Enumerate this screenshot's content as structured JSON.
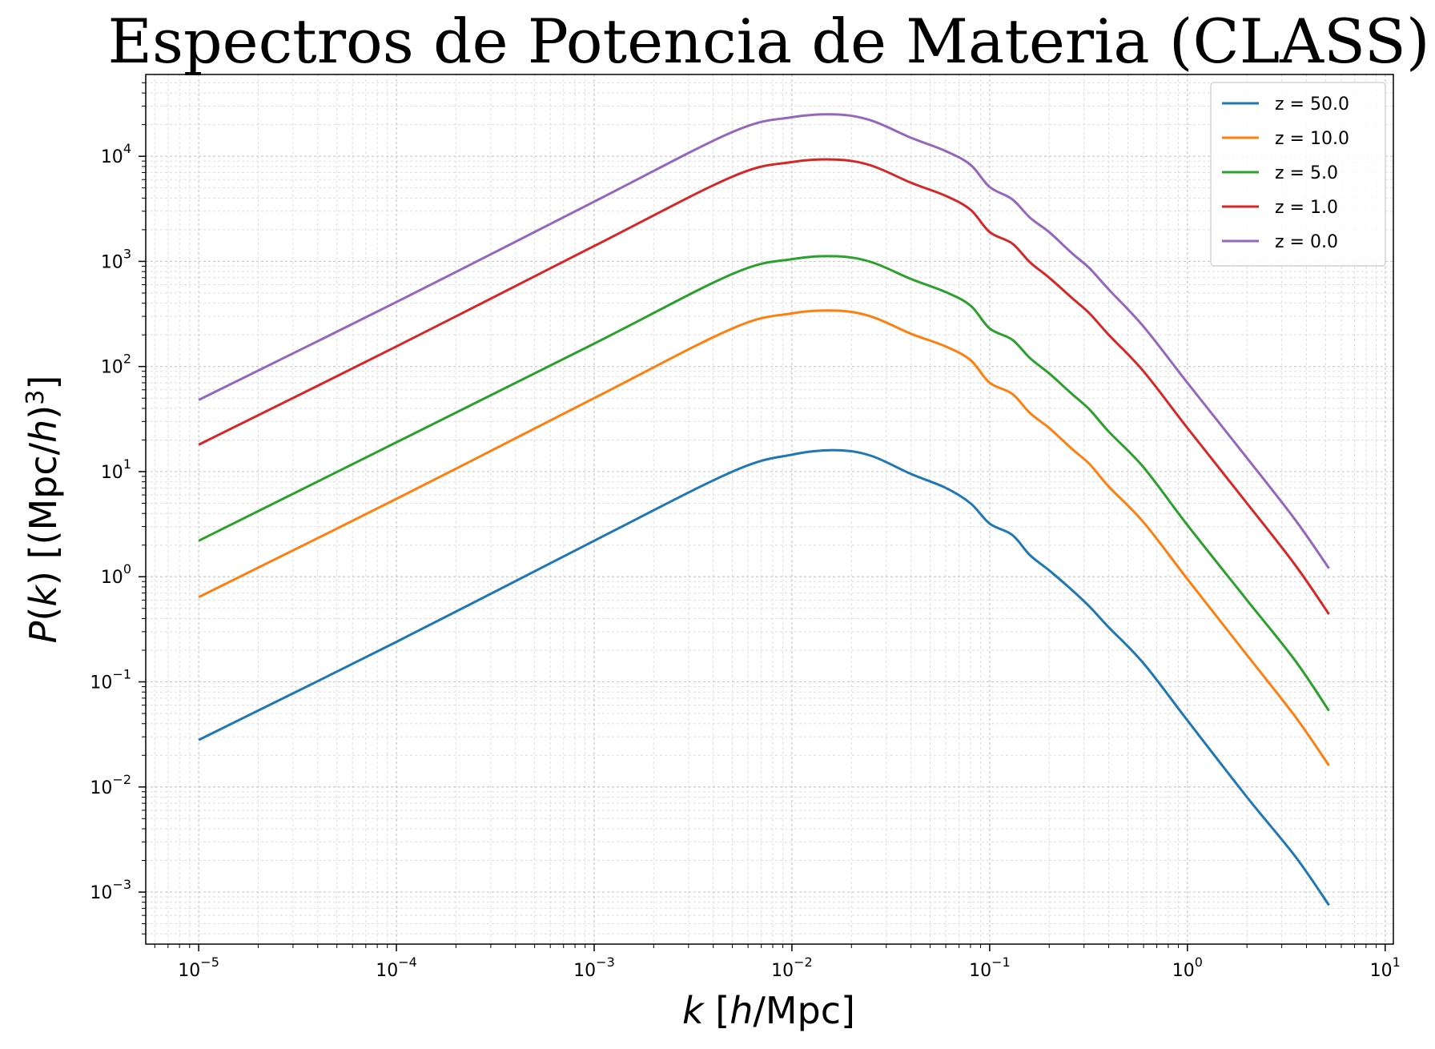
{
  "chart_data": {
    "type": "line",
    "title": "Espectros de Potencia de Materia (CLASS)",
    "xlabel_parts": [
      "k",
      " [",
      "h",
      "/Mpc]"
    ],
    "ylabel_parts": [
      "P",
      "(",
      "k",
      ") [(Mpc/",
      "h",
      ")",
      "3",
      "]"
    ],
    "xscale": "log",
    "yscale": "log",
    "xlim": [
      5.4e-06,
      11
    ],
    "ylim": [
      0.00032,
      60000
    ],
    "x_ticks": [
      {
        "value": 1e-05,
        "base": "10",
        "exp": "−5"
      },
      {
        "value": 0.0001,
        "base": "10",
        "exp": "−4"
      },
      {
        "value": 0.001,
        "base": "10",
        "exp": "−3"
      },
      {
        "value": 0.01,
        "base": "10",
        "exp": "−2"
      },
      {
        "value": 0.1,
        "base": "10",
        "exp": "−1"
      },
      {
        "value": 1,
        "base": "10",
        "exp": "0"
      },
      {
        "value": 10,
        "base": "10",
        "exp": "1"
      }
    ],
    "y_ticks": [
      {
        "value": 0.001,
        "base": "10",
        "exp": "−3"
      },
      {
        "value": 0.01,
        "base": "10",
        "exp": "−2"
      },
      {
        "value": 0.1,
        "base": "10",
        "exp": "−1"
      },
      {
        "value": 1,
        "base": "10",
        "exp": "0"
      },
      {
        "value": 10,
        "base": "10",
        "exp": "1"
      },
      {
        "value": 100,
        "base": "10",
        "exp": "2"
      },
      {
        "value": 1000,
        "base": "10",
        "exp": "3"
      },
      {
        "value": 10000,
        "base": "10",
        "exp": "4"
      }
    ],
    "grid": true,
    "legend_position": "top-right",
    "series": [
      {
        "name": "z = 50.0",
        "color": "#1f77b4",
        "x": [
          1e-05,
          0.0001,
          0.001,
          0.005,
          0.01,
          0.0166,
          0.025,
          0.04,
          0.06,
          0.08,
          0.1,
          0.13,
          0.16,
          0.2,
          0.26,
          0.32,
          0.4,
          0.6,
          1,
          2,
          3.5,
          5.2
        ],
        "y": [
          0.028,
          0.24,
          2.2,
          10,
          14.5,
          16,
          14.2,
          9.5,
          7,
          5,
          3.2,
          2.5,
          1.6,
          1.15,
          0.75,
          0.52,
          0.33,
          0.15,
          0.043,
          0.008,
          0.0022,
          0.00075
        ]
      },
      {
        "name": "z = 10.0",
        "color": "#ff7f0e",
        "x": [
          1e-05,
          0.0001,
          0.001,
          0.005,
          0.01,
          0.0166,
          0.025,
          0.04,
          0.06,
          0.08,
          0.1,
          0.13,
          0.16,
          0.2,
          0.26,
          0.32,
          0.4,
          0.6,
          1,
          2,
          3.5,
          5.2
        ],
        "y": [
          0.64,
          5.5,
          50,
          230,
          320,
          340,
          300,
          205,
          155,
          115,
          70,
          55,
          36,
          26,
          16.5,
          11.8,
          7.2,
          3.3,
          0.95,
          0.18,
          0.047,
          0.016
        ]
      },
      {
        "name": "z = 5.0",
        "color": "#2ca02c",
        "x": [
          1e-05,
          0.0001,
          0.001,
          0.005,
          0.01,
          0.0166,
          0.025,
          0.04,
          0.06,
          0.08,
          0.1,
          0.13,
          0.16,
          0.2,
          0.26,
          0.32,
          0.4,
          0.6,
          1,
          2,
          3.5,
          5.2
        ],
        "y": [
          2.2,
          19,
          165,
          760,
          1050,
          1120,
          990,
          680,
          510,
          380,
          230,
          180,
          120,
          86,
          55,
          39,
          24,
          11,
          3.1,
          0.6,
          0.16,
          0.053
        ]
      },
      {
        "name": "z = 1.0",
        "color": "#d62728",
        "x": [
          1e-05,
          0.0001,
          0.001,
          0.005,
          0.01,
          0.0166,
          0.025,
          0.04,
          0.06,
          0.08,
          0.1,
          0.13,
          0.16,
          0.2,
          0.26,
          0.32,
          0.4,
          0.6,
          1,
          2,
          3.5,
          5.2
        ],
        "y": [
          18,
          155,
          1400,
          6400,
          8800,
          9300,
          8200,
          5600,
          4200,
          3100,
          1900,
          1480,
          980,
          700,
          450,
          320,
          200,
          90,
          26,
          5,
          1.3,
          0.44
        ]
      },
      {
        "name": "z = 0.0",
        "color": "#9467bd",
        "x": [
          1e-05,
          0.0001,
          0.001,
          0.005,
          0.01,
          0.0166,
          0.025,
          0.04,
          0.06,
          0.08,
          0.1,
          0.13,
          0.16,
          0.2,
          0.26,
          0.32,
          0.4,
          0.6,
          1,
          2,
          3.5,
          5.2
        ],
        "y": [
          48,
          410,
          3700,
          17000,
          23500,
          25000,
          22000,
          15000,
          11200,
          8300,
          5100,
          3900,
          2600,
          1900,
          1200,
          860,
          540,
          240,
          70,
          13.5,
          3.5,
          1.2
        ]
      }
    ]
  }
}
